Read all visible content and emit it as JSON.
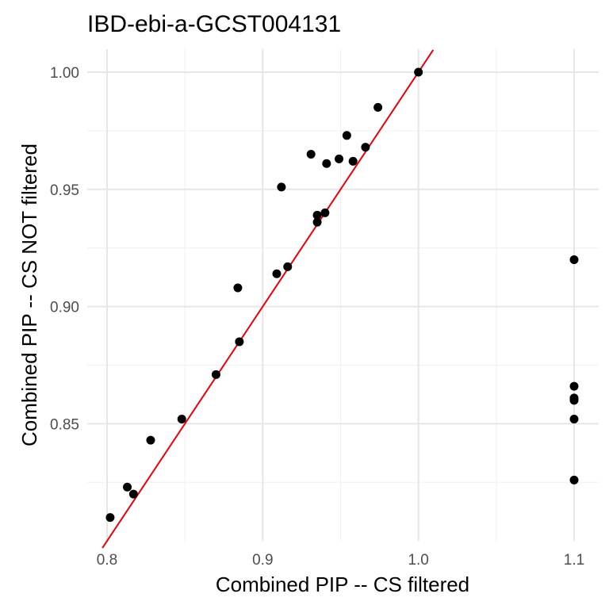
{
  "chart_data": {
    "type": "scatter",
    "title": "IBD-ebi-a-GCST004131",
    "xlabel": "Combined PIP -- CS filtered",
    "ylabel": "Combined PIP -- CS NOT filtered",
    "xlim": [
      0.8,
      1.1
    ],
    "ylim": [
      0.8,
      1.0
    ],
    "x_ticks": [
      "0.8",
      "0.9",
      "1.0",
      "1.1"
    ],
    "y_ticks": [
      "0.85",
      "0.90",
      "0.95",
      "1.00"
    ],
    "reference_line": {
      "type": "identity",
      "slope": 1,
      "intercept": 0,
      "color": "#e8000b"
    },
    "point_color": "#000000",
    "points": [
      {
        "x": 0.802,
        "y": 0.81
      },
      {
        "x": 0.813,
        "y": 0.823
      },
      {
        "x": 0.817,
        "y": 0.82
      },
      {
        "x": 0.828,
        "y": 0.843
      },
      {
        "x": 0.848,
        "y": 0.852
      },
      {
        "x": 0.87,
        "y": 0.871
      },
      {
        "x": 0.884,
        "y": 0.908
      },
      {
        "x": 0.885,
        "y": 0.885
      },
      {
        "x": 0.909,
        "y": 0.914
      },
      {
        "x": 0.912,
        "y": 0.951
      },
      {
        "x": 0.916,
        "y": 0.917
      },
      {
        "x": 0.931,
        "y": 0.965
      },
      {
        "x": 0.935,
        "y": 0.939
      },
      {
        "x": 0.935,
        "y": 0.936
      },
      {
        "x": 0.94,
        "y": 0.94
      },
      {
        "x": 0.941,
        "y": 0.961
      },
      {
        "x": 0.949,
        "y": 0.963
      },
      {
        "x": 0.954,
        "y": 0.973
      },
      {
        "x": 0.958,
        "y": 0.962
      },
      {
        "x": 0.966,
        "y": 0.968
      },
      {
        "x": 0.974,
        "y": 0.985
      },
      {
        "x": 1.0,
        "y": 1.0
      },
      {
        "x": 1.1,
        "y": 0.92
      },
      {
        "x": 1.1,
        "y": 0.866
      },
      {
        "x": 1.1,
        "y": 0.861
      },
      {
        "x": 1.1,
        "y": 0.86
      },
      {
        "x": 1.1,
        "y": 0.852
      },
      {
        "x": 1.1,
        "y": 0.826
      }
    ]
  }
}
